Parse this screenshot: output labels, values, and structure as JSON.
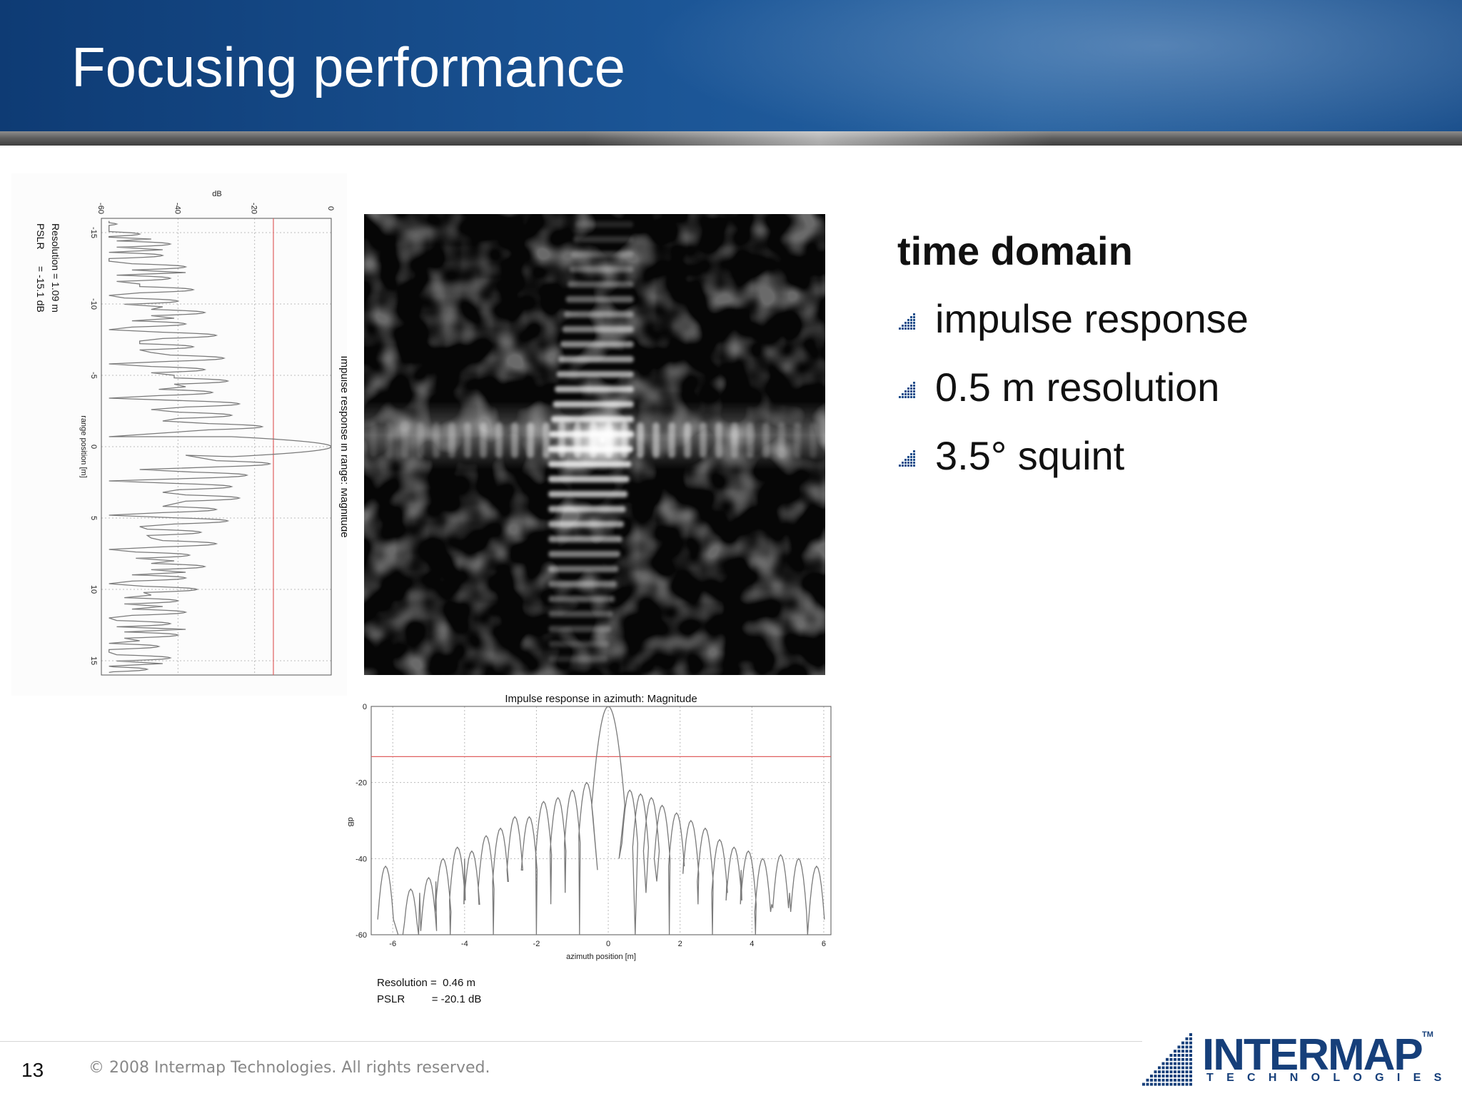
{
  "slide": {
    "title": "Focusing performance",
    "page_number": "13",
    "copyright": "© 2008 Intermap Technologies. All rights reserved."
  },
  "bullets": {
    "heading": "time domain",
    "items": [
      "impulse response",
      "0.5 m resolution",
      "3.5° squint"
    ]
  },
  "logo": {
    "word": "INTERMAP",
    "tm": "TM",
    "sub": "TECHNOLOGIES"
  },
  "colors": {
    "header": "#1b5596",
    "threshold": "#e06060",
    "logo": "#163f7a"
  },
  "range_stats": {
    "resolution": "Resolution = 1.09 m",
    "pslr": "PSLR      = -15.1 dB"
  },
  "azimuth_stats": {
    "resolution": "Resolution =  0.46 m",
    "pslr": "PSLR         = -20.1 dB"
  },
  "chart_data": [
    {
      "type": "line",
      "title": "Impulse response in range: Magnitude",
      "xlabel": "range position [m]",
      "ylabel": "dB",
      "orientation": "rotated-90",
      "xlim": [
        -16,
        16
      ],
      "ylim": [
        -60,
        0
      ],
      "x_ticks": [
        -15,
        -10,
        -5,
        0,
        5,
        10,
        15
      ],
      "y_ticks": [
        -60,
        -40,
        -20,
        0
      ],
      "threshold_db": -15.1,
      "grid": true,
      "peak": {
        "x": 0,
        "y": 0
      },
      "sidelobe_peaks": [
        {
          "x": -15.6,
          "y": -56
        },
        {
          "x": -14.9,
          "y": -50
        },
        {
          "x": -14.2,
          "y": -42
        },
        {
          "x": -13.4,
          "y": -44
        },
        {
          "x": -12.6,
          "y": -38
        },
        {
          "x": -11.8,
          "y": -42
        },
        {
          "x": -11.0,
          "y": -36
        },
        {
          "x": -10.2,
          "y": -40
        },
        {
          "x": -9.4,
          "y": -33
        },
        {
          "x": -8.6,
          "y": -38
        },
        {
          "x": -7.8,
          "y": -30
        },
        {
          "x": -7.0,
          "y": -36
        },
        {
          "x": -6.2,
          "y": -28
        },
        {
          "x": -5.4,
          "y": -33
        },
        {
          "x": -4.6,
          "y": -27
        },
        {
          "x": -3.8,
          "y": -31
        },
        {
          "x": -3.0,
          "y": -24
        },
        {
          "x": -2.2,
          "y": -26
        },
        {
          "x": -1.4,
          "y": -18
        },
        {
          "x": 1.2,
          "y": -16
        },
        {
          "x": 2.0,
          "y": -22
        },
        {
          "x": 2.8,
          "y": -26
        },
        {
          "x": 3.6,
          "y": -24
        },
        {
          "x": 4.4,
          "y": -30
        },
        {
          "x": 5.2,
          "y": -27
        },
        {
          "x": 6.0,
          "y": -34
        },
        {
          "x": 6.8,
          "y": -30
        },
        {
          "x": 7.6,
          "y": -37
        },
        {
          "x": 8.4,
          "y": -33
        },
        {
          "x": 9.2,
          "y": -38
        },
        {
          "x": 10.0,
          "y": -35
        },
        {
          "x": 10.8,
          "y": -40
        },
        {
          "x": 11.6,
          "y": -38
        },
        {
          "x": 12.4,
          "y": -42
        },
        {
          "x": 13.2,
          "y": -40
        },
        {
          "x": 14.0,
          "y": -45
        },
        {
          "x": 14.8,
          "y": -42
        },
        {
          "x": 15.6,
          "y": -48
        }
      ]
    },
    {
      "type": "line",
      "title": "Impulse response in azimuth: Magnitude",
      "xlabel": "azimuth position [m]",
      "ylabel": "dB",
      "xlim": [
        -6.6,
        6.2
      ],
      "ylim": [
        -60,
        0
      ],
      "x_ticks": [
        -6,
        -4,
        -2,
        0,
        2,
        4,
        6
      ],
      "y_ticks": [
        0,
        -20,
        -40,
        -60
      ],
      "threshold_db": -13.2,
      "grid": true,
      "peak": {
        "x": 0,
        "y": 0
      },
      "sidelobe_peaks": [
        {
          "x": -6.2,
          "y": -42
        },
        {
          "x": -5.5,
          "y": -48
        },
        {
          "x": -5.0,
          "y": -45
        },
        {
          "x": -4.6,
          "y": -40
        },
        {
          "x": -4.2,
          "y": -37
        },
        {
          "x": -3.8,
          "y": -38
        },
        {
          "x": -3.4,
          "y": -34
        },
        {
          "x": -3.0,
          "y": -32
        },
        {
          "x": -2.6,
          "y": -29
        },
        {
          "x": -2.2,
          "y": -29
        },
        {
          "x": -1.8,
          "y": -25
        },
        {
          "x": -1.4,
          "y": -24
        },
        {
          "x": -1.0,
          "y": -22
        },
        {
          "x": -0.6,
          "y": -20
        },
        {
          "x": 0.6,
          "y": -22
        },
        {
          "x": 0.9,
          "y": -23
        },
        {
          "x": 1.2,
          "y": -24
        },
        {
          "x": 1.5,
          "y": -26
        },
        {
          "x": 1.9,
          "y": -28
        },
        {
          "x": 2.3,
          "y": -30
        },
        {
          "x": 2.7,
          "y": -32
        },
        {
          "x": 3.1,
          "y": -35
        },
        {
          "x": 3.5,
          "y": -37
        },
        {
          "x": 3.9,
          "y": -38
        },
        {
          "x": 4.3,
          "y": -40
        },
        {
          "x": 4.8,
          "y": -39
        },
        {
          "x": 5.3,
          "y": -40
        },
        {
          "x": 5.8,
          "y": -42
        }
      ]
    }
  ]
}
